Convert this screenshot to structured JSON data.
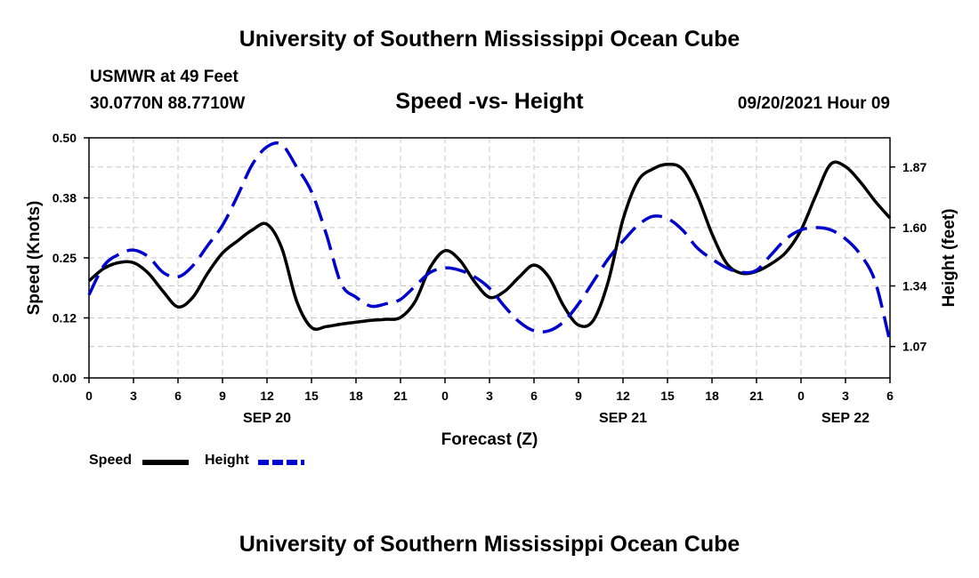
{
  "header": {
    "title": "University of Southern Mississippi Ocean Cube",
    "station": "USMWR at 49 Feet",
    "coords": "30.0770N  88.7710W",
    "datetime": "09/20/2021 Hour 09"
  },
  "footer": {
    "title": "University of Southern Mississippi Ocean Cube"
  },
  "chart_data": {
    "type": "line",
    "title": "Speed -vs- Height",
    "xlabel": "Forecast (Z)",
    "ylabel": "Speed (Knots)",
    "y2label": "Height (feet)",
    "x_range_hours": [
      0,
      54
    ],
    "x_tick_labels": [
      "0",
      "3",
      "6",
      "9",
      "12",
      "15",
      "18",
      "21",
      "0",
      "3",
      "6",
      "9",
      "12",
      "15",
      "18",
      "21",
      "0",
      "3",
      "6"
    ],
    "date_labels": [
      {
        "hour": 12,
        "label": "SEP 20"
      },
      {
        "hour": 36,
        "label": "SEP 21"
      },
      {
        "hour": 51,
        "label": "SEP 22"
      }
    ],
    "ylim": [
      0,
      0.5
    ],
    "y_ticks": [
      0.0,
      0.125,
      0.25,
      0.375,
      0.5
    ],
    "y_tick_labels": [
      "0.00",
      "0.12",
      "0.25",
      "0.38",
      "0.50"
    ],
    "y2lim": [
      0.93,
      2.0
    ],
    "y2_ticks": [
      1.07,
      1.34,
      1.6,
      1.87
    ],
    "y2_tick_labels": [
      "1.07",
      "1.34",
      "1.60",
      "1.87"
    ],
    "grid": true,
    "legend_position": "bottom-left",
    "series": [
      {
        "name": "Speed",
        "axis": "left",
        "color": "#000000",
        "style": "solid",
        "x": [
          0,
          1,
          2,
          3,
          4,
          5,
          6,
          7,
          8,
          9,
          10,
          11,
          12,
          13,
          14,
          15,
          16,
          17,
          18,
          19,
          20,
          21,
          22,
          23,
          24,
          25,
          26,
          27,
          28,
          29,
          30,
          31,
          32,
          33,
          34,
          35,
          36,
          37,
          38,
          39,
          40,
          41,
          42,
          43,
          44,
          45,
          46,
          47,
          48,
          49,
          50,
          51,
          52,
          53,
          54
        ],
        "values": [
          0.202,
          0.228,
          0.24,
          0.24,
          0.218,
          0.18,
          0.148,
          0.168,
          0.218,
          0.26,
          0.285,
          0.308,
          0.32,
          0.27,
          0.16,
          0.105,
          0.107,
          0.112,
          0.116,
          0.12,
          0.122,
          0.126,
          0.16,
          0.23,
          0.265,
          0.245,
          0.2,
          0.168,
          0.18,
          0.21,
          0.235,
          0.21,
          0.15,
          0.11,
          0.12,
          0.2,
          0.33,
          0.41,
          0.435,
          0.445,
          0.435,
          0.38,
          0.3,
          0.238,
          0.218,
          0.222,
          0.238,
          0.262,
          0.308,
          0.38,
          0.445,
          0.44,
          0.408,
          0.368,
          0.333
        ]
      },
      {
        "name": "Height",
        "axis": "right",
        "color": "#0000cc",
        "style": "dashed",
        "x": [
          0,
          1,
          2,
          3,
          4,
          5,
          6,
          7,
          8,
          9,
          10,
          11,
          12,
          13,
          14,
          15,
          16,
          17,
          18,
          19,
          20,
          21,
          22,
          23,
          24,
          25,
          26,
          27,
          28,
          29,
          30,
          31,
          32,
          33,
          34,
          35,
          36,
          37,
          38,
          39,
          40,
          41,
          42,
          43,
          44,
          45,
          46,
          47,
          48,
          49,
          50,
          51,
          52,
          53,
          54
        ],
        "values": [
          1.3,
          1.43,
          1.48,
          1.5,
          1.47,
          1.4,
          1.38,
          1.43,
          1.52,
          1.61,
          1.74,
          1.88,
          1.96,
          1.97,
          1.87,
          1.76,
          1.57,
          1.35,
          1.29,
          1.25,
          1.26,
          1.28,
          1.34,
          1.4,
          1.42,
          1.41,
          1.38,
          1.33,
          1.25,
          1.18,
          1.14,
          1.14,
          1.18,
          1.26,
          1.36,
          1.46,
          1.54,
          1.61,
          1.65,
          1.64,
          1.59,
          1.51,
          1.46,
          1.42,
          1.4,
          1.41,
          1.48,
          1.55,
          1.59,
          1.6,
          1.59,
          1.55,
          1.48,
          1.36,
          1.09
        ]
      }
    ]
  }
}
